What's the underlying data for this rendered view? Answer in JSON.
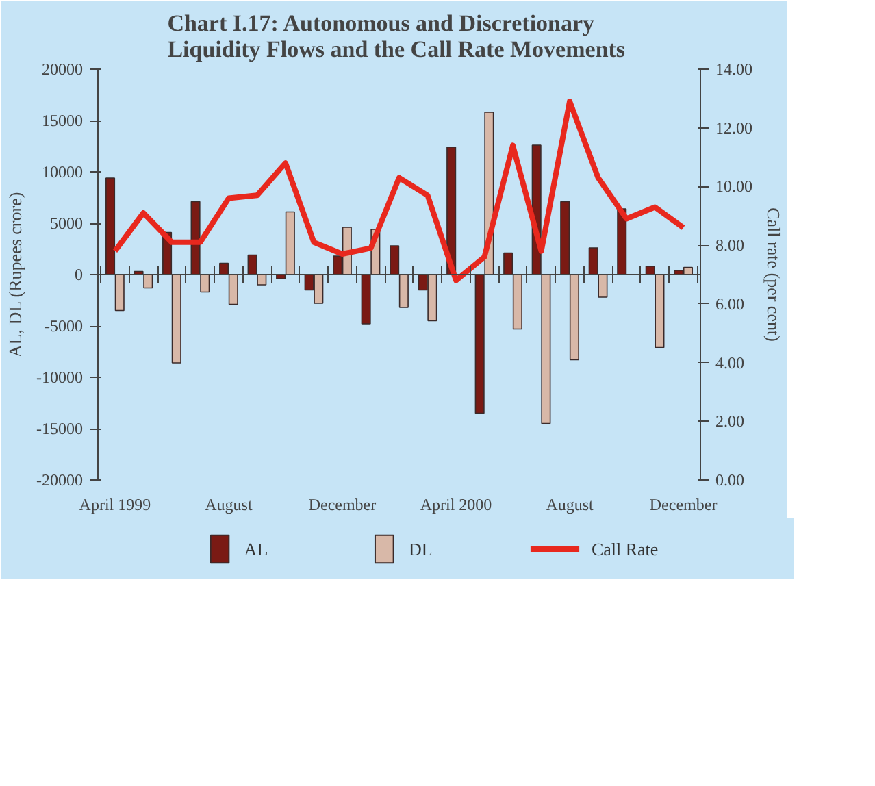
{
  "chart_data": {
    "type": "bar",
    "title": "Chart I.17: Autonomous and Discretionary\nLiquidity Flows and the  Call Rate Movements",
    "ylabel": "AL, DL (Rupees crore)",
    "y2label": "Call rate (per cent)",
    "categories": [
      "April 1999",
      null,
      null,
      null,
      "August",
      null,
      null,
      null,
      "December",
      null,
      null,
      null,
      "April 2000",
      null,
      null,
      null,
      "August",
      null,
      null,
      null,
      "December"
    ],
    "series": [
      {
        "name": "AL",
        "type": "bar",
        "color": "#7a1a14",
        "values": [
          9400,
          300,
          4100,
          7100,
          1100,
          1900,
          -400,
          -1500,
          1800,
          -4800,
          2800,
          -1500,
          12400,
          -13500,
          2100,
          12600,
          7100,
          2600,
          6400,
          800,
          400
        ]
      },
      {
        "name": "DL",
        "type": "bar",
        "color": "#d8b8a8",
        "values": [
          -3500,
          -1300,
          -8600,
          -1700,
          -2900,
          -1000,
          6100,
          -2800,
          4600,
          4400,
          -3200,
          -4500,
          null,
          15800,
          -5300,
          -14500,
          -8300,
          -2200,
          null,
          -7100,
          700
        ]
      },
      {
        "name": "Call Rate",
        "type": "line",
        "axis": "y2",
        "color": "#e8281e",
        "values": [
          7.8,
          9.1,
          8.1,
          8.1,
          9.6,
          9.7,
          10.8,
          8.1,
          7.7,
          7.9,
          10.3,
          9.7,
          6.8,
          7.6,
          11.4,
          7.8,
          12.9,
          10.3,
          8.9,
          9.3,
          8.6
        ]
      }
    ],
    "ylim": [
      -20000,
      20000
    ],
    "yticks": [
      -20000,
      -15000,
      -10000,
      -5000,
      0,
      5000,
      10000,
      15000,
      20000
    ],
    "y2lim": [
      0,
      14
    ],
    "y2ticks": [
      {
        "value": 0,
        "label": "0.00"
      },
      {
        "value": 2,
        "label": "2.00"
      },
      {
        "value": 4,
        "label": "4.00"
      },
      {
        "value": 6,
        "label": "6.00"
      },
      {
        "value": 8,
        "label": "8.00"
      },
      {
        "value": 10,
        "label": "10.00"
      },
      {
        "value": 12,
        "label": "12.00"
      },
      {
        "value": 14,
        "label": "14.00"
      }
    ],
    "legend": "bottom"
  }
}
